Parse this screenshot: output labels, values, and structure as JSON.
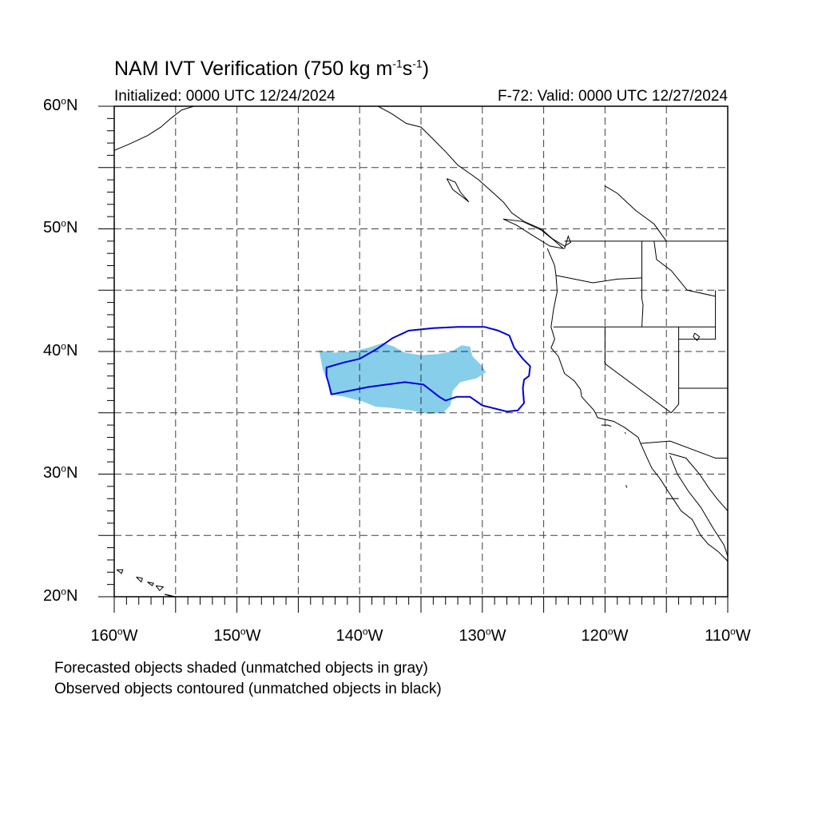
{
  "title": {
    "main": "NAM IVT Verification (750 kg m",
    "sup1": "-1",
    "mid": "s",
    "sup2": "-1",
    "end": ")"
  },
  "subtitle_left": "Initialized: 0000 UTC 12/24/2024",
  "subtitle_right": "F-72: Valid: 0000 UTC 12/27/2024",
  "lat_labels": [
    {
      "num": "60",
      "deg": "o",
      "hem": "N"
    },
    {
      "num": "50",
      "deg": "o",
      "hem": "N"
    },
    {
      "num": "40",
      "deg": "o",
      "hem": "N"
    },
    {
      "num": "30",
      "deg": "o",
      "hem": "N"
    },
    {
      "num": "20",
      "deg": "o",
      "hem": "N"
    }
  ],
  "lon_labels": [
    {
      "num": "160",
      "deg": "o",
      "hem": "W"
    },
    {
      "num": "150",
      "deg": "o",
      "hem": "W"
    },
    {
      "num": "140",
      "deg": "o",
      "hem": "W"
    },
    {
      "num": "130",
      "deg": "o",
      "hem": "W"
    },
    {
      "num": "120",
      "deg": "o",
      "hem": "W"
    },
    {
      "num": "110",
      "deg": "o",
      "hem": "W"
    }
  ],
  "notes": [
    "Forecasted objects shaded (unmatched objects in gray)",
    "Observed objects contoured (unmatched objects in black)"
  ],
  "map": {
    "lon_range": [
      -160,
      -110
    ],
    "lat_range": [
      20,
      60
    ],
    "grid_spacing_deg": 5,
    "forecast_fill_color": "#87ceeb",
    "observed_contour_color": "#0000dd",
    "forecast_object": [
      [
        -143.3,
        40.1
      ],
      [
        -142.1,
        39.9
      ],
      [
        -140.6,
        40.0
      ],
      [
        -139.3,
        40.3
      ],
      [
        -138.1,
        40.7
      ],
      [
        -137.2,
        40.4
      ],
      [
        -136.3,
        39.9
      ],
      [
        -135.0,
        39.7
      ],
      [
        -133.6,
        39.8
      ],
      [
        -132.5,
        40.0
      ],
      [
        -131.7,
        40.5
      ],
      [
        -131.0,
        40.4
      ],
      [
        -130.8,
        39.6
      ],
      [
        -130.1,
        38.9
      ],
      [
        -129.7,
        38.3
      ],
      [
        -130.5,
        37.8
      ],
      [
        -131.8,
        37.5
      ],
      [
        -132.4,
        36.8
      ],
      [
        -132.6,
        35.6
      ],
      [
        -133.2,
        35.0
      ],
      [
        -134.4,
        34.9
      ],
      [
        -135.8,
        35.2
      ],
      [
        -137.4,
        35.4
      ],
      [
        -138.7,
        35.5
      ],
      [
        -139.7,
        35.9
      ],
      [
        -141.2,
        36.3
      ],
      [
        -142.4,
        36.5
      ],
      [
        -142.6,
        37.5
      ],
      [
        -143.0,
        38.5
      ]
    ],
    "observed_object": [
      [
        -142.7,
        38.7
      ],
      [
        -141.3,
        39.1
      ],
      [
        -140.0,
        39.4
      ],
      [
        -138.6,
        40.2
      ],
      [
        -137.3,
        41.1
      ],
      [
        -136.0,
        41.7
      ],
      [
        -134.0,
        41.9
      ],
      [
        -132.0,
        42.0
      ],
      [
        -129.8,
        42.0
      ],
      [
        -128.7,
        41.7
      ],
      [
        -127.8,
        41.3
      ],
      [
        -127.4,
        40.3
      ],
      [
        -126.7,
        39.4
      ],
      [
        -126.1,
        38.8
      ],
      [
        -126.2,
        38.0
      ],
      [
        -126.6,
        37.7
      ],
      [
        -126.7,
        37.0
      ],
      [
        -126.6,
        35.8
      ],
      [
        -127.1,
        35.2
      ],
      [
        -128.0,
        35.1
      ],
      [
        -130.0,
        35.6
      ],
      [
        -131.0,
        36.3
      ],
      [
        -132.1,
        36.3
      ],
      [
        -133.0,
        36.0
      ],
      [
        -133.5,
        36.3
      ],
      [
        -134.8,
        37.3
      ],
      [
        -136.3,
        37.5
      ],
      [
        -137.8,
        37.3
      ],
      [
        -139.3,
        37.1
      ],
      [
        -140.8,
        36.8
      ],
      [
        -142.3,
        36.5
      ],
      [
        -142.5,
        37.3
      ],
      [
        -142.7,
        38.0
      ]
    ]
  }
}
